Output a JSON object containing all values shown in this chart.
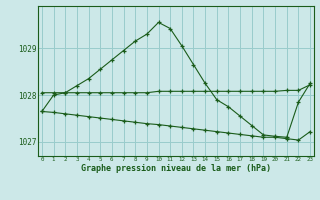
{
  "title": "Graphe pression niveau de la mer (hPa)",
  "bg_color": "#cce8e8",
  "grid_color": "#99cccc",
  "line_color": "#1a5c1a",
  "x_labels": [
    "0",
    "1",
    "2",
    "3",
    "4",
    "5",
    "6",
    "7",
    "8",
    "9",
    "10",
    "11",
    "12",
    "13",
    "14",
    "15",
    "16",
    "17",
    "18",
    "19",
    "20",
    "21",
    "22",
    "23"
  ],
  "y_ticks": [
    1027,
    1028,
    1029
  ],
  "ylim": [
    1026.7,
    1029.9
  ],
  "xlim": [
    -0.3,
    23.3
  ],
  "series1": [
    1027.65,
    1028.0,
    1028.05,
    1028.2,
    1028.35,
    1028.55,
    1028.75,
    1028.95,
    1029.15,
    1029.3,
    1029.55,
    1029.42,
    1029.05,
    1028.65,
    1028.25,
    1027.9,
    1027.75,
    1027.55,
    1027.35,
    1027.15,
    1027.12,
    1027.1,
    1027.85,
    1028.25
  ],
  "series2": [
    1028.05,
    1028.05,
    1028.05,
    1028.05,
    1028.05,
    1028.05,
    1028.05,
    1028.05,
    1028.05,
    1028.05,
    1028.08,
    1028.08,
    1028.08,
    1028.08,
    1028.08,
    1028.08,
    1028.08,
    1028.08,
    1028.08,
    1028.08,
    1028.08,
    1028.1,
    1028.1,
    1028.22
  ],
  "series3": [
    1027.65,
    1027.63,
    1027.6,
    1027.57,
    1027.54,
    1027.51,
    1027.48,
    1027.45,
    1027.42,
    1027.39,
    1027.37,
    1027.34,
    1027.31,
    1027.28,
    1027.25,
    1027.22,
    1027.19,
    1027.16,
    1027.13,
    1027.1,
    1027.1,
    1027.07,
    1027.04,
    1027.22
  ]
}
